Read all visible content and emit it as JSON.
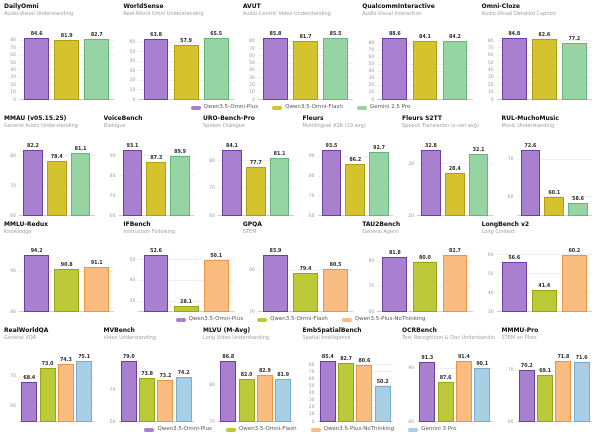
{
  "page": {
    "title": "Benchmark comparison grid"
  },
  "colors": {
    "background": "#ffffff",
    "title_text": "#0a0a0a",
    "subtitle_text": "#9aa0a6",
    "value_text": "#2b2b2b",
    "tick_text": "#999999",
    "gridline": "#efefef",
    "palettes": {
      "purple": {
        "fill": "#a97fd0",
        "edge": "#6e3fa3"
      },
      "yellow": {
        "fill": "#d4c22e",
        "edge": "#b29e0e"
      },
      "green": {
        "fill": "#97d4a4",
        "edge": "#64b57e"
      },
      "olive": {
        "fill": "#bcca3a",
        "edge": "#98a414"
      },
      "orange": {
        "fill": "#f9bd82",
        "edge": "#f09440"
      },
      "blue": {
        "fill": "#a9cfe5",
        "edge": "#77add2"
      }
    }
  },
  "chart_data": {
    "type": "bar",
    "rows": [
      {
        "palette": [
          "purple",
          "yellow",
          "green"
        ],
        "series": [
          "Qwen3.5-Omni-Plus",
          "Qwen3.5-Omni-Flash",
          "Gemini 2.5 Pro"
        ],
        "legend_visible": true,
        "charts": [
          {
            "title": "DailyOmni",
            "subtitle": "Audio-Visual Understanding",
            "values": [
              84.6,
              81.9,
              82.7
            ],
            "ymin": 0
          },
          {
            "title": "WorldSense",
            "subtitle": "Real-World Omni Understanding",
            "values": [
              63.8,
              57.9,
              65.5
            ],
            "ymin": 0
          },
          {
            "title": "AVUT",
            "subtitle": "Audio-Centric Video Understanding",
            "values": [
              85.8,
              81.7,
              85.5
            ],
            "ymin": 0
          },
          {
            "title": "QualcommInteractive",
            "subtitle": "Audio-Visual Interaction",
            "values": [
              88.6,
              84.1,
              84.2
            ],
            "ymin": 0
          },
          {
            "title": "Omni-Cloze",
            "subtitle": "Audio-Visual Detailed Caption",
            "values": [
              84.8,
              82.6,
              77.2
            ],
            "ymin": 0
          }
        ]
      },
      {
        "palette": [
          "purple",
          "yellow",
          "green"
        ],
        "series": [
          "Qwen3.5-Omni-Plus",
          "Qwen3.5-Omni-Flash",
          "Gemini 2.5 Pro"
        ],
        "legend_visible": false,
        "charts": [
          {
            "title": "MMAU (v05.15.25)",
            "subtitle": "General Audio Understanding",
            "values": [
              82.2,
              78.4,
              81.1
            ],
            "ymin": 60
          },
          {
            "title": "VoiceBench",
            "subtitle": "Dialogue",
            "values": [
              93.1,
              87.3,
              89.9
            ],
            "ymin": 60
          },
          {
            "title": "URO-Bench-Pro",
            "subtitle": "Spoken Dialogue",
            "values": [
              84.1,
              77.7,
              81.1
            ],
            "ymin": 60
          },
          {
            "title": "Fleurs",
            "subtitle": "Multilingual ASR (19 avg)",
            "values": [
              93.5,
              86.2,
              92.7
            ],
            "ymin": 60
          },
          {
            "title": "Fleurs S2TT",
            "subtitle": "Speech Translation (x→en avg)",
            "values": [
              32.8,
              28.4,
              32.1
            ],
            "ymin": 20
          },
          {
            "title": "RUL-MuchoMusic",
            "subtitle": "Music Understanding",
            "values": [
              72.6,
              60.1,
              58.6
            ],
            "ymin": 55
          }
        ]
      },
      {
        "palette": [
          "purple",
          "olive",
          "orange"
        ],
        "series": [
          "Qwen3.5-Omni-Plus",
          "Qwen3.5-Omni-Flash",
          "Qwen3.5-Plus-NoThinking"
        ],
        "legend_visible": true,
        "charts": [
          {
            "title": "MMLU-Redux",
            "subtitle": "Knowledge",
            "values": [
              94.2,
              90.8,
              91.1
            ],
            "ymin": 80
          },
          {
            "title": "IFBench",
            "subtitle": "Instruction Following",
            "values": [
              52.6,
              28.1,
              50.1
            ],
            "ymin": 25
          },
          {
            "title": "GPQA",
            "subtitle": "STEM",
            "values": [
              83.9,
              79.4,
              80.5
            ],
            "ymin": 70
          },
          {
            "title": "TAU2Bench",
            "subtitle": "General Agent",
            "values": [
              81.8,
              80.0,
              82.7
            ],
            "ymin": 60
          },
          {
            "title": "LongBench v2",
            "subtitle": "Long Context",
            "values": [
              56.6,
              41.4,
              60.2
            ],
            "ymin": 30
          }
        ]
      },
      {
        "palette": [
          "purple",
          "olive",
          "orange",
          "blue"
        ],
        "series": [
          "Qwen3.5-Omni-Plus",
          "Qwen3.5-Omni-Flash",
          "Qwen3.5-Plus-NoThinking",
          "Gemini 3 Pro"
        ],
        "legend_visible": true,
        "charts": [
          {
            "title": "RealWorldQA",
            "subtitle": "General VQA",
            "values": [
              68.4,
              73.0,
              74.3,
              75.1
            ],
            "ymin": 55
          },
          {
            "title": "MVBench",
            "subtitle": "Video Understanding",
            "values": [
              79.0,
              73.8,
              73.2,
              74.2
            ],
            "ymin": 60
          },
          {
            "title": "MLVU (M-Avg)",
            "subtitle": "Long Video Understanding",
            "values": [
              86.8,
              82.0,
              82.9,
              81.9
            ],
            "ymin": 70
          },
          {
            "title": "EmbSpatialBench",
            "subtitle": "Spatial Intelligence",
            "values": [
              85.4,
              82.7,
              80.6,
              50.2
            ],
            "ymin": 0
          },
          {
            "title": "OCRBench",
            "subtitle": "Text Recognition & Doc Understanding",
            "values": [
              91.3,
              87.6,
              91.4,
              90.1
            ],
            "ymin": 80
          },
          {
            "title": "MMMU-Pro",
            "subtitle": "STEM on Plots",
            "values": [
              70.2,
              69.1,
              71.8,
              71.6
            ],
            "ymin": 60
          }
        ]
      }
    ]
  }
}
